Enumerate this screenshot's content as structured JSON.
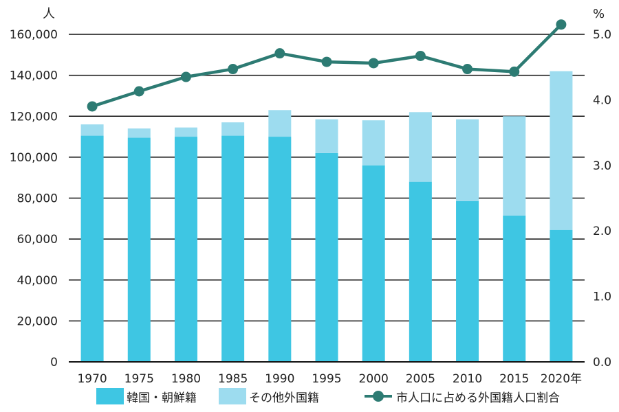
{
  "chart_data": {
    "type": "bar+line",
    "categories": [
      "1970",
      "1975",
      "1980",
      "1985",
      "1990",
      "1995",
      "2000",
      "2005",
      "2010",
      "2015",
      "2020年"
    ],
    "series": [
      {
        "name": "韓国・朝鮮籍",
        "type": "bar",
        "stack": "total",
        "axis": "left",
        "color": "#3ec6e3",
        "values": [
          110500,
          109500,
          110000,
          110500,
          110000,
          102000,
          96000,
          88000,
          78500,
          71500,
          64500
        ]
      },
      {
        "name": "その他外国籍",
        "type": "bar",
        "stack": "total",
        "axis": "left",
        "color": "#9ddcef",
        "values": [
          5500,
          4500,
          4500,
          6500,
          13000,
          16500,
          22000,
          34000,
          40000,
          48500,
          77500
        ]
      },
      {
        "name": "市人口に占める外国籍人口割合",
        "type": "line",
        "axis": "right",
        "color": "#2d7b73",
        "values": [
          3.9,
          4.13,
          4.35,
          4.47,
          4.71,
          4.58,
          4.56,
          4.67,
          4.47,
          4.43,
          5.15
        ]
      }
    ],
    "y_left": {
      "unit": "人",
      "ylim": [
        0,
        160000
      ],
      "ticks": [
        "0",
        "20,000",
        "40,000",
        "60,000",
        "80,000",
        "100,000",
        "120,000",
        "140,000",
        "160,000"
      ]
    },
    "y_right": {
      "unit": "%",
      "ylim": [
        0.0,
        5.0
      ],
      "ticks": [
        "0.0",
        "1.0",
        "2.0",
        "3.0",
        "4.0",
        "5.0"
      ]
    },
    "grid": true,
    "legend_position": "bottom"
  }
}
